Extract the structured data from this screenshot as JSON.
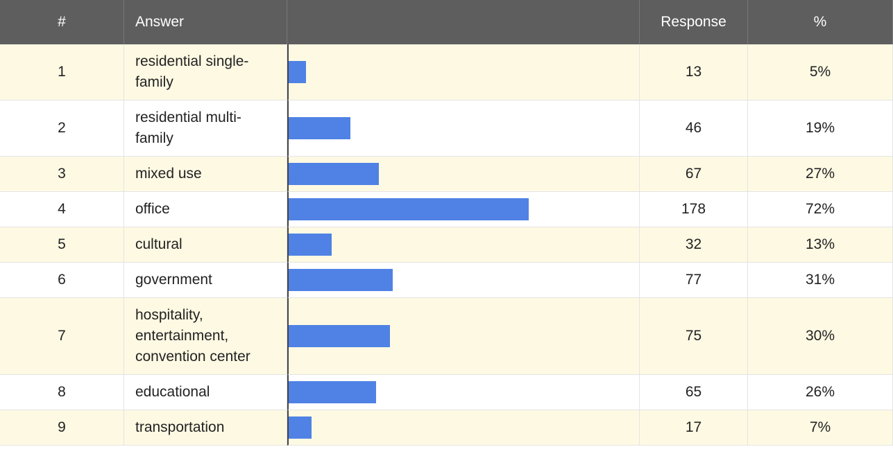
{
  "table": {
    "headers": {
      "number": "#",
      "answer": "Answer",
      "response": "Response",
      "percent": "%"
    },
    "rows": [
      {
        "number": 1,
        "answer": "residential single-family",
        "response": 13,
        "percent": "5%"
      },
      {
        "number": 2,
        "answer": "residential multi-family",
        "response": 46,
        "percent": "19%"
      },
      {
        "number": 3,
        "answer": "mixed use",
        "response": 67,
        "percent": "27%"
      },
      {
        "number": 4,
        "answer": "office",
        "response": 178,
        "percent": "72%"
      },
      {
        "number": 5,
        "answer": "cultural",
        "response": 32,
        "percent": "13%"
      },
      {
        "number": 6,
        "answer": "government",
        "response": 77,
        "percent": "31%"
      },
      {
        "number": 7,
        "answer": "hospitality, entertainment, convention center",
        "response": 75,
        "percent": "30%"
      },
      {
        "number": 8,
        "answer": "educational",
        "response": 65,
        "percent": "26%"
      },
      {
        "number": 9,
        "answer": "transportation",
        "response": 17,
        "percent": "7%"
      }
    ]
  }
}
